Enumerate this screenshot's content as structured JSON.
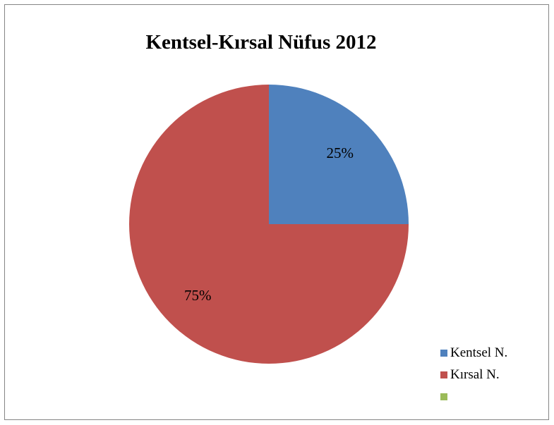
{
  "chart_data": {
    "type": "pie",
    "title": "Kentsel-Kırsal Nüfus 2012",
    "categories": [
      "Kentsel N.",
      "Kırsal N.",
      ""
    ],
    "values": [
      25,
      75,
      0
    ],
    "data_labels": [
      "25%",
      "75%",
      ""
    ],
    "colors": [
      "#4f81bd",
      "#c0504d",
      "#9bbb59"
    ],
    "legend": "right"
  }
}
